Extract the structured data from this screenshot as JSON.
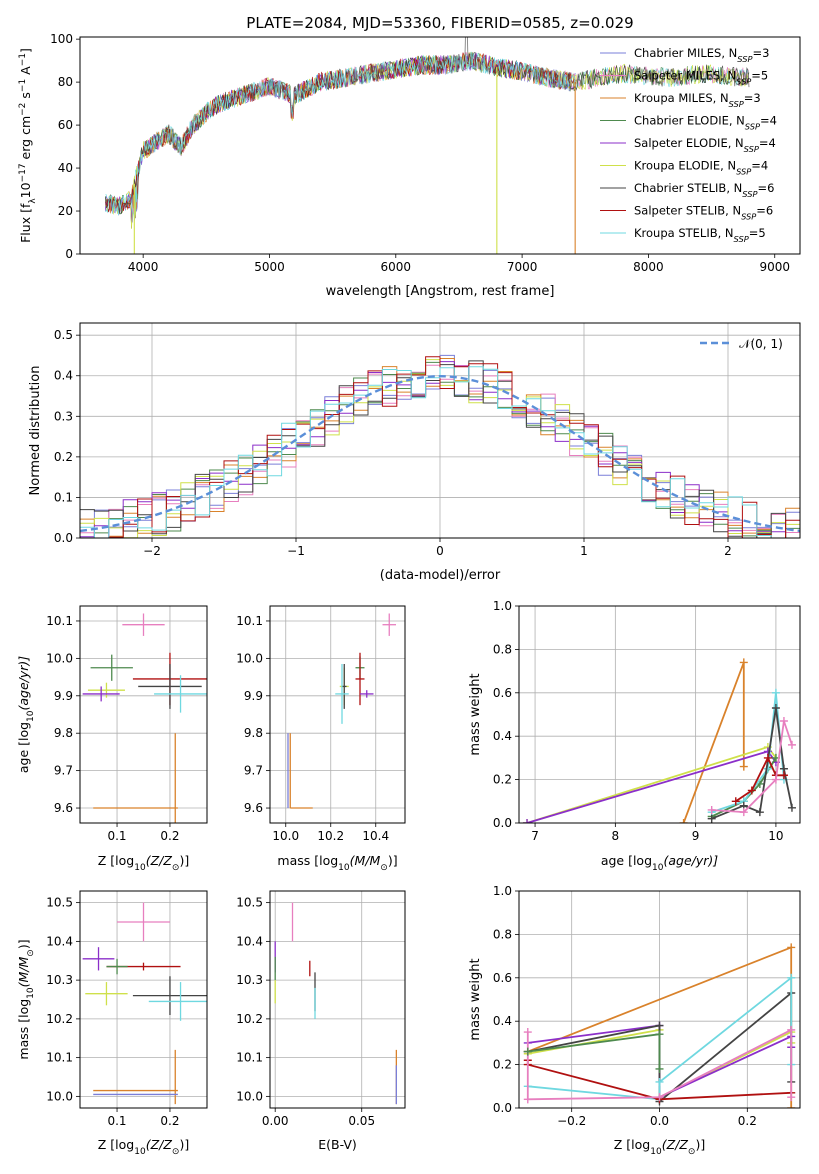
{
  "title": "PLATE=2084, MJD=53360, FIBERID=0585, z=0.029",
  "colors": {
    "chabrier_miles": "#7a7fd8",
    "salpeter_miles": "#e77fbf",
    "kroupa_miles": "#d9822b",
    "chabrier_elodie": "#4e8a4e",
    "salpeter_elodie": "#8b2fc9",
    "kroupa_elodie": "#cfe04a",
    "chabrier_stelib": "#444444",
    "salpeter_stelib": "#b01010",
    "kroupa_stelib": "#6fd8e0",
    "gaussian": "#5b8fd8"
  },
  "chart_data": [
    {
      "id": "spectrum",
      "type": "line",
      "xlabel": "wavelength [Angstrom, rest frame]",
      "ylabel_prefix": "Flux [f",
      "ylabel_tail": "10",
      "ylabel_exp": "−17",
      "ylabel_units": " erg cm",
      "ylabel_units2": " s",
      "ylabel_units3": " A",
      "xlim": [
        3500,
        9200
      ],
      "ylim": [
        0,
        101
      ],
      "xticks": [
        4000,
        5000,
        6000,
        7000,
        8000,
        9000
      ],
      "yticks": [
        0,
        20,
        40,
        60,
        80,
        100
      ],
      "legend_position": "upper-right",
      "legend": [
        {
          "base": "Chabrier MILES, N",
          "sub": "SSP",
          "tail": "=3"
        },
        {
          "base": "Salpeter MILES, N",
          "sub": "SSP",
          "tail": "=5"
        },
        {
          "base": "Kroupa MILES, N",
          "sub": "SSP",
          "tail": "=3"
        },
        {
          "base": "Chabrier ELODIE, N",
          "sub": "SSP",
          "tail": "=4"
        },
        {
          "base": "Salpeter ELODIE, N",
          "sub": "SSP",
          "tail": "=4"
        },
        {
          "base": "Kroupa ELODIE, N",
          "sub": "SSP",
          "tail": "=4"
        },
        {
          "base": "Chabrier STELIB, N",
          "sub": "SSP",
          "tail": "=6"
        },
        {
          "base": "Salpeter STELIB, N",
          "sub": "SSP",
          "tail": "=6"
        },
        {
          "base": "Kroupa STELIB, N",
          "sub": "SSP",
          "tail": "=5"
        }
      ],
      "x": [
        3700,
        3800,
        3900,
        4000,
        4100,
        4200,
        4300,
        4400,
        4500,
        4600,
        4800,
        5000,
        5200,
        5400,
        5600,
        5800,
        6000,
        6200,
        6400,
        6600,
        6800,
        7000,
        7200,
        7400,
        7600,
        7800,
        8000,
        8200,
        8400,
        8600,
        8800,
        9000
      ],
      "y": [
        24,
        22,
        26,
        48,
        52,
        56,
        50,
        60,
        66,
        70,
        74,
        78,
        74,
        80,
        82,
        84,
        86,
        88,
        88,
        90,
        87,
        85,
        82,
        80,
        82,
        84,
        83,
        82,
        84,
        83,
        82,
        80
      ]
    },
    {
      "id": "residuals",
      "type": "area",
      "xlabel": "(data-model)/error",
      "ylabel": "Normed distribution",
      "xlim": [
        -2.5,
        2.5
      ],
      "ylim": [
        0,
        0.53
      ],
      "xticks": [
        -2,
        -1,
        0,
        1,
        2
      ],
      "yticks": [
        0.0,
        0.1,
        0.2,
        0.3,
        0.4,
        0.5
      ],
      "legend_position": "upper-right",
      "legend_label": "𝒩(0, 1)",
      "gaussian_sigma": 1.0
    },
    {
      "id": "z-age",
      "type": "scatter",
      "xlabel": "Z [log",
      "xlabel_math": "(Z/Z",
      "ylabel": "age  [log",
      "ylabel_math": "(age/yr)]",
      "xlim": [
        0.03,
        0.27
      ],
      "ylim": [
        9.56,
        10.14
      ],
      "xticks": [
        0.1,
        0.2
      ],
      "yticks": [
        9.6,
        9.7,
        9.8,
        9.9,
        10.0,
        10.1
      ],
      "points": [
        {
          "key": "salpeter_miles",
          "x": 0.15,
          "y": 10.09,
          "dx": 0.04,
          "dy": 0.03
        },
        {
          "key": "chabrier_elodie",
          "x": 0.09,
          "y": 9.975,
          "dx": 0.04,
          "dy": 0.035
        },
        {
          "key": "salpeter_stelib",
          "x": 0.2,
          "y": 9.945,
          "dx": 0.07,
          "dy": 0.07
        },
        {
          "key": "chabrier_stelib",
          "x": 0.2,
          "y": 9.925,
          "dx": 0.06,
          "dy": 0.06
        },
        {
          "key": "kroupa_elodie",
          "x": 0.08,
          "y": 9.915,
          "dx": 0.035,
          "dy": 0.02
        },
        {
          "key": "salpeter_elodie",
          "x": 0.07,
          "y": 9.905,
          "dx": 0.035,
          "dy": 0.02
        },
        {
          "key": "kroupa_stelib",
          "x": 0.22,
          "y": 9.905,
          "dx": 0.05,
          "dy": 0.05
        },
        {
          "key": "kroupa_miles",
          "x": 0.21,
          "y": 9.6,
          "dx": 0.0,
          "dy": 0.2
        },
        {
          "key": "kroupa_miles",
          "x": 0.135,
          "y": 9.6,
          "dx": 0.08,
          "dy": 0.0
        }
      ]
    },
    {
      "id": "mass-age",
      "type": "scatter",
      "xlabel": "mass [log",
      "xlabel_math": "(M/M",
      "xlim": [
        9.93,
        10.53
      ],
      "ylim": [
        9.56,
        10.14
      ],
      "xticks": [
        10.0,
        10.2,
        10.4
      ],
      "yticks": [
        9.6,
        9.7,
        9.8,
        9.9,
        10.0,
        10.1
      ],
      "points": [
        {
          "key": "salpeter_miles",
          "x": 10.46,
          "y": 10.09,
          "dx": 0.03,
          "dy": 0.03
        },
        {
          "key": "chabrier_elodie",
          "x": 10.33,
          "y": 9.975,
          "dx": 0.02,
          "dy": 0.03
        },
        {
          "key": "salpeter_stelib",
          "x": 10.33,
          "y": 9.945,
          "dx": 0.02,
          "dy": 0.07
        },
        {
          "key": "kroupa_elodie",
          "x": 10.26,
          "y": 9.925,
          "dx": 0.02,
          "dy": 0.05
        },
        {
          "key": "chabrier_stelib",
          "x": 10.26,
          "y": 9.925,
          "dx": 0.01,
          "dy": 0.06
        },
        {
          "key": "kroupa_stelib",
          "x": 10.25,
          "y": 9.905,
          "dx": 0.03,
          "dy": 0.08
        },
        {
          "key": "salpeter_elodie",
          "x": 10.36,
          "y": 9.905,
          "dx": 0.03,
          "dy": 0.01
        },
        {
          "key": "kroupa_miles",
          "x": 10.02,
          "y": 9.7,
          "dx": 0.0,
          "dy": 0.1
        },
        {
          "key": "chabrier_miles",
          "x": 10.01,
          "y": 9.7,
          "dx": 0.0,
          "dy": 0.1
        },
        {
          "key": "kroupa_miles",
          "x": 10.07,
          "y": 9.6,
          "dx": 0.05,
          "dy": 0.0
        }
      ]
    },
    {
      "id": "age-weight",
      "type": "line",
      "xlabel": "age  [log",
      "xlabel_math": "(age/yr)]",
      "ylabel": "mass weight",
      "xlim": [
        6.8,
        10.3
      ],
      "ylim": [
        0,
        1.0
      ],
      "xticks": [
        7,
        8,
        9,
        10
      ],
      "yticks": [
        0.0,
        0.2,
        0.4,
        0.6,
        0.8,
        1.0
      ],
      "series": [
        {
          "key": "kroupa_miles",
          "x": [
            8.85,
            9.6,
            9.6
          ],
          "y": [
            0.0,
            0.74,
            0.26
          ]
        },
        {
          "key": "kroupa_elodie",
          "x": [
            6.9,
            9.9,
            10.0
          ],
          "y": [
            0.0,
            0.35,
            0.3
          ]
        },
        {
          "key": "salpeter_elodie",
          "x": [
            6.9,
            9.9,
            10.0
          ],
          "y": [
            0.0,
            0.33,
            0.28
          ]
        },
        {
          "key": "chabrier_elodie",
          "x": [
            9.2,
            9.6,
            9.8,
            10.0
          ],
          "y": [
            0.03,
            0.1,
            0.18,
            0.3
          ]
        },
        {
          "key": "kroupa_stelib",
          "x": [
            9.2,
            9.6,
            9.9,
            10.0,
            10.1
          ],
          "y": [
            0.05,
            0.1,
            0.25,
            0.6,
            0.2
          ]
        },
        {
          "key": "chabrier_stelib",
          "x": [
            9.2,
            9.6,
            9.8,
            10.0,
            10.1,
            10.2
          ],
          "y": [
            0.02,
            0.08,
            0.05,
            0.53,
            0.25,
            0.07
          ]
        },
        {
          "key": "salpeter_stelib",
          "x": [
            9.5,
            9.7,
            9.9,
            10.0,
            10.1
          ],
          "y": [
            0.1,
            0.15,
            0.3,
            0.22,
            0.22
          ]
        },
        {
          "key": "salpeter_miles",
          "x": [
            9.2,
            9.6,
            10.0,
            10.1,
            10.2
          ],
          "y": [
            0.06,
            0.05,
            0.2,
            0.47,
            0.36
          ]
        }
      ]
    },
    {
      "id": "z-mass",
      "type": "scatter",
      "xlabel": "Z [log",
      "xlabel_math": "(Z/Z",
      "ylabel": "mass [log",
      "ylabel_math": "(M/M",
      "xlim": [
        0.03,
        0.27
      ],
      "ylim": [
        9.97,
        10.53
      ],
      "xticks": [
        0.1,
        0.2
      ],
      "yticks": [
        10.0,
        10.1,
        10.2,
        10.3,
        10.4,
        10.5
      ],
      "points": [
        {
          "key": "salpeter_miles",
          "x": 0.15,
          "y": 10.45,
          "dx": 0.05,
          "dy": 0.05
        },
        {
          "key": "salpeter_elodie",
          "x": 0.065,
          "y": 10.355,
          "dx": 0.03,
          "dy": 0.03
        },
        {
          "key": "salpeter_stelib",
          "x": 0.15,
          "y": 10.335,
          "dx": 0.07,
          "dy": 0.01
        },
        {
          "key": "chabrier_elodie",
          "x": 0.1,
          "y": 10.335,
          "dx": 0.02,
          "dy": 0.02
        },
        {
          "key": "kroupa_elodie",
          "x": 0.08,
          "y": 10.265,
          "dx": 0.04,
          "dy": 0.03
        },
        {
          "key": "chabrier_stelib",
          "x": 0.2,
          "y": 10.26,
          "dx": 0.07,
          "dy": 0.05
        },
        {
          "key": "kroupa_stelib",
          "x": 0.22,
          "y": 10.245,
          "dx": 0.06,
          "dy": 0.05
        },
        {
          "key": "kroupa_miles",
          "x": 0.21,
          "y": 10.05,
          "dx": 0.0,
          "dy": 0.07
        },
        {
          "key": "kroupa_miles",
          "x": 0.135,
          "y": 10.015,
          "dx": 0.08,
          "dy": 0.0
        },
        {
          "key": "chabrier_miles",
          "x": 0.135,
          "y": 10.005,
          "dx": 0.08,
          "dy": 0.0
        }
      ]
    },
    {
      "id": "ebv-mass",
      "type": "scatter",
      "xlabel": "E(B-V)",
      "xlim": [
        -0.003,
        0.075
      ],
      "ylim": [
        9.97,
        10.53
      ],
      "xticks": [
        0.0,
        0.05
      ],
      "yticks": [
        10.0,
        10.1,
        10.2,
        10.3,
        10.4,
        10.5
      ],
      "points": [
        {
          "key": "salpeter_miles",
          "x": 0.01,
          "y": 10.45,
          "dx": 0.0,
          "dy": 0.05
        },
        {
          "key": "salpeter_elodie",
          "x": 0.0,
          "y": 10.36,
          "dx": 0.0,
          "dy": 0.04
        },
        {
          "key": "chabrier_elodie",
          "x": 0.0,
          "y": 10.33,
          "dx": 0.0,
          "dy": 0.03
        },
        {
          "key": "salpeter_stelib",
          "x": 0.02,
          "y": 10.33,
          "dx": 0.0,
          "dy": 0.02
        },
        {
          "key": "kroupa_elodie",
          "x": 0.0,
          "y": 10.27,
          "dx": 0.0,
          "dy": 0.03
        },
        {
          "key": "chabrier_stelib",
          "x": 0.023,
          "y": 10.27,
          "dx": 0.0,
          "dy": 0.05
        },
        {
          "key": "kroupa_stelib",
          "x": 0.023,
          "y": 10.24,
          "dx": 0.0,
          "dy": 0.04
        },
        {
          "key": "kroupa_miles",
          "x": 0.07,
          "y": 10.05,
          "dx": 0.0,
          "dy": 0.07
        },
        {
          "key": "chabrier_miles",
          "x": 0.07,
          "y": 10.03,
          "dx": 0.0,
          "dy": 0.05
        }
      ]
    },
    {
      "id": "z-weight",
      "type": "line",
      "xlabel": "Z [log",
      "xlabel_math": "(Z/Z",
      "ylabel": "mass weight",
      "xlim": [
        -0.32,
        0.32
      ],
      "ylim": [
        0,
        1.0
      ],
      "xticks": [
        -0.2,
        0.0,
        0.2
      ],
      "yticks": [
        0.0,
        0.2,
        0.4,
        0.6,
        0.8,
        1.0
      ],
      "series": [
        {
          "key": "kroupa_miles",
          "x": [
            -0.3,
            0.3,
            0.3
          ],
          "y": [
            0.26,
            0.74,
            0.0
          ]
        },
        {
          "key": "kroupa_elodie",
          "x": [
            -0.3,
            0.0,
            0.0,
            0.3,
            0.3
          ],
          "y": [
            0.25,
            0.36,
            0.05,
            0.35,
            0.3
          ]
        },
        {
          "key": "salpeter_elodie",
          "x": [
            -0.3,
            0.0,
            0.0,
            0.3,
            0.3
          ],
          "y": [
            0.3,
            0.38,
            0.05,
            0.33,
            0.28
          ]
        },
        {
          "key": "chabrier_stelib",
          "x": [
            -0.3,
            0.0,
            0.0,
            0.3,
            0.3
          ],
          "y": [
            0.26,
            0.38,
            0.03,
            0.53,
            0.12
          ]
        },
        {
          "key": "kroupa_stelib",
          "x": [
            -0.3,
            0.0,
            0.0,
            0.3,
            0.3
          ],
          "y": [
            0.1,
            0.04,
            0.12,
            0.6,
            0.2
          ]
        },
        {
          "key": "salpeter_stelib",
          "x": [
            -0.3,
            -0.3,
            0.0,
            0.3
          ],
          "y": [
            0.22,
            0.2,
            0.04,
            0.07
          ]
        },
        {
          "key": "salpeter_miles",
          "x": [
            -0.3,
            -0.3,
            0.0,
            0.3,
            0.3
          ],
          "y": [
            0.35,
            0.04,
            0.05,
            0.36,
            0.05
          ]
        },
        {
          "key": "chabrier_elodie",
          "x": [
            -0.3,
            0.0,
            0.0
          ],
          "y": [
            0.26,
            0.34,
            0.18
          ]
        }
      ]
    }
  ]
}
